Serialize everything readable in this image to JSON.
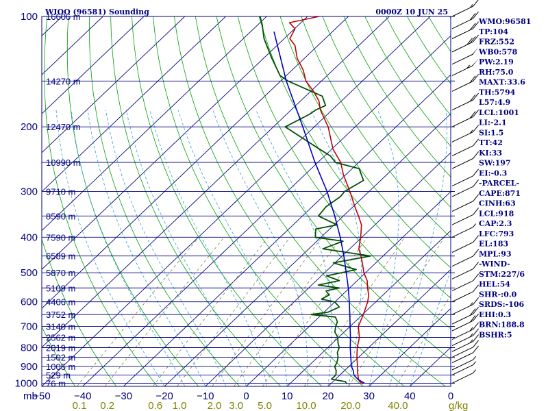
{
  "header": {
    "station": "WIOO (96581) Sounding",
    "time": "0000Z 10 JUN 25"
  },
  "stats": [
    "WMO:96581",
    "TP:104",
    "FRZ:552",
    "WB0:578",
    "PW:2.19",
    "RH:75.0",
    "MAXT:33.6",
    "TH:5794",
    "L57:4.9",
    "LCL:1001",
    "LI:-2.1",
    "SI:1.5",
    "TT:42",
    "KI:33",
    "SW:197",
    "EI:-0.3",
    "-PARCEL-",
    "CAPE:871",
    "CINH:63",
    "LCL:918",
    "CAP:2.3",
    "LFC:793",
    "EL:183",
    "MPL:93",
    "-WIND-",
    "STM:227/6",
    "HEL:54",
    "SHR-:0.0",
    "SRDS:-106",
    "EHI:0.3",
    "BRN:188.8",
    "BSHR:5"
  ],
  "colors": {
    "axes": "#000080",
    "isobar": "#000080",
    "isotherm": "#000080",
    "dry_adiabat": "#00a000",
    "moist_adiabat": "#4aa8e0",
    "mixing_ratio": "#808040",
    "temperature": "#c00000",
    "dewpoint": "#005000",
    "parcel": "#0000c0",
    "wind_barb": "#000000"
  },
  "chart_data": {
    "type": "line",
    "title": "WIOO (96581) Sounding",
    "subtitle": "0000Z 10 JUN 25",
    "diagram": "skew-T log-P",
    "y_axis_label": "mb",
    "x_axis_units": "g/kg",
    "pressure_ticks": [
      100,
      200,
      300,
      400,
      500,
      600,
      700,
      800,
      900,
      1000
    ],
    "temperature_ticks": [
      -50,
      -40,
      -30,
      -20,
      -10,
      0,
      10,
      20,
      30,
      40,
      0
    ],
    "mixing_ratio_ticks": [
      "0.1",
      "0.2",
      "0.6",
      "1.0",
      "2.0",
      "3.0",
      "5.0",
      "10.0",
      "20.0",
      "40.0"
    ],
    "mixing_ratio_values": [
      0.1,
      0.2,
      0.6,
      1.0,
      2.0,
      3.0,
      5.0,
      10.0,
      20.0,
      40.0
    ],
    "height_labels": [
      {
        "p": 100,
        "label": "16606 m"
      },
      {
        "p": 150,
        "label": "14270 m"
      },
      {
        "p": 200,
        "label": "12470 m"
      },
      {
        "p": 250,
        "label": "10990 m"
      },
      {
        "p": 300,
        "label": "9710 m"
      },
      {
        "p": 350,
        "label": "8590 m"
      },
      {
        "p": 400,
        "label": "7590 m"
      },
      {
        "p": 450,
        "label": "6589 m"
      },
      {
        "p": 500,
        "label": "5870 m"
      },
      {
        "p": 550,
        "label": "5109 m"
      },
      {
        "p": 600,
        "label": "4406 m"
      },
      {
        "p": 650,
        "label": "3752 m"
      },
      {
        "p": 700,
        "label": "3140 m"
      },
      {
        "p": 750,
        "label": "2562 m"
      },
      {
        "p": 800,
        "label": "2019 m"
      },
      {
        "p": 850,
        "label": "1502 m"
      },
      {
        "p": 900,
        "label": "1005 m"
      },
      {
        "p": 950,
        "label": "529 m"
      },
      {
        "p": 1000,
        "label": "76 m"
      }
    ],
    "ylim": [
      1020,
      100
    ],
    "xlim": [
      -50,
      50
    ],
    "series": [
      {
        "key": "temperature",
        "points": [
          [
            1005,
            28
          ],
          [
            990,
            26.5
          ],
          [
            975,
            25.6
          ],
          [
            950,
            24.4
          ],
          [
            925,
            23.2
          ],
          [
            900,
            22.1
          ],
          [
            850,
            19.6
          ],
          [
            800,
            17.2
          ],
          [
            750,
            15.1
          ],
          [
            700,
            12.0
          ],
          [
            680,
            11.3
          ],
          [
            650,
            10.2
          ],
          [
            600,
            8.0
          ],
          [
            575,
            6.5
          ],
          [
            550,
            4.4
          ],
          [
            525,
            2.4
          ],
          [
            500,
            -0.4
          ],
          [
            470,
            -3.3
          ],
          [
            450,
            -5.4
          ],
          [
            430,
            -7.8
          ],
          [
            400,
            -10.3
          ],
          [
            370,
            -13.3
          ],
          [
            350,
            -16.3
          ],
          [
            330,
            -19.6
          ],
          [
            300,
            -24.7
          ],
          [
            270,
            -30.6
          ],
          [
            250,
            -34.4
          ],
          [
            230,
            -39.7
          ],
          [
            200,
            -46.6
          ],
          [
            180,
            -52.8
          ],
          [
            170,
            -55.5
          ],
          [
            160,
            -59.3
          ],
          [
            150,
            -63.8
          ],
          [
            140,
            -67.3
          ],
          [
            130,
            -71.8
          ],
          [
            120,
            -75.6
          ],
          [
            115,
            -78.6
          ],
          [
            108,
            -79.9
          ],
          [
            104,
            -82.8
          ],
          [
            102,
            -80.0
          ],
          [
            100,
            -77.2
          ]
        ]
      },
      {
        "key": "dewpoint",
        "points": [
          [
            1005,
            24
          ],
          [
            990,
            23
          ],
          [
            975,
            19
          ],
          [
            950,
            19.0
          ],
          [
            925,
            18.0
          ],
          [
            900,
            16.5
          ],
          [
            880,
            16.1
          ],
          [
            850,
            15.0
          ],
          [
            825,
            13.6
          ],
          [
            800,
            12.8
          ],
          [
            775,
            11.2
          ],
          [
            750,
            9.8
          ],
          [
            725,
            7.7
          ],
          [
            700,
            6.5
          ],
          [
            680,
            5.7
          ],
          [
            660,
            4.0
          ],
          [
            650,
            -2.6
          ],
          [
            640,
            1.0
          ],
          [
            620,
            2.4
          ],
          [
            600,
            -0.1
          ],
          [
            590,
            -4.0
          ],
          [
            575,
            -3.2
          ],
          [
            560,
            -5.0
          ],
          [
            550,
            -2.5
          ],
          [
            540,
            -8.4
          ],
          [
            525,
            -4.4
          ],
          [
            510,
            -8.7
          ],
          [
            490,
            -3.1
          ],
          [
            470,
            -10.4
          ],
          [
            450,
            -3.1
          ],
          [
            430,
            -16.6
          ],
          [
            410,
            -13.6
          ],
          [
            400,
            -21.4
          ],
          [
            380,
            -23.4
          ],
          [
            370,
            -19.3
          ],
          [
            350,
            -26.1
          ],
          [
            330,
            -26.6
          ],
          [
            310,
            -25.7
          ],
          [
            300,
            -26.0
          ],
          [
            280,
            -24.2
          ],
          [
            260,
            -28.3
          ],
          [
            250,
            -35.7
          ],
          [
            240,
            -38.6
          ],
          [
            230,
            -43.0
          ],
          [
            200,
            -57.1
          ],
          [
            185,
            -54.4
          ],
          [
            180,
            -54.0
          ],
          [
            175,
            -52.7
          ],
          [
            165,
            -55.9
          ],
          [
            150,
            -68.2
          ],
          [
            145,
            -71.5
          ],
          [
            130,
            -78.0
          ],
          [
            115,
            -84.9
          ],
          [
            105,
            -89.1
          ],
          [
            100,
            -91.6
          ]
        ]
      },
      {
        "key": "parcel",
        "points": [
          [
            1000,
            28.1
          ],
          [
            975,
            25.4
          ],
          [
            950,
            23.4
          ],
          [
            925,
            22.2
          ],
          [
            900,
            20.6
          ],
          [
            850,
            18.1
          ],
          [
            800,
            15.5
          ],
          [
            750,
            12.9
          ],
          [
            700,
            10.0
          ],
          [
            650,
            6.9
          ],
          [
            600,
            3.5
          ],
          [
            550,
            -0.3
          ],
          [
            500,
            -4.7
          ],
          [
            450,
            -9.6
          ],
          [
            400,
            -15.3
          ],
          [
            350,
            -22.1
          ],
          [
            300,
            -30.3
          ],
          [
            250,
            -40.7
          ],
          [
            200,
            -52.8
          ],
          [
            150,
            -68.6
          ],
          [
            110,
            -84.3
          ]
        ]
      }
    ],
    "wind_profile": [
      {
        "p": 1000,
        "spd": 5
      },
      {
        "p": 950,
        "spd": 5
      },
      {
        "p": 920,
        "spd": 5
      },
      {
        "p": 880,
        "spd": 10
      },
      {
        "p": 850,
        "spd": 10
      },
      {
        "p": 820,
        "spd": 15
      },
      {
        "p": 790,
        "spd": 15
      },
      {
        "p": 760,
        "spd": 15
      },
      {
        "p": 720,
        "spd": 20
      },
      {
        "p": 690,
        "spd": 20
      },
      {
        "p": 650,
        "spd": 15
      },
      {
        "p": 600,
        "spd": 10
      },
      {
        "p": 560,
        "spd": 10
      },
      {
        "p": 520,
        "spd": 10
      },
      {
        "p": 480,
        "spd": 10
      },
      {
        "p": 440,
        "spd": 10
      },
      {
        "p": 400,
        "spd": 5
      },
      {
        "p": 370,
        "spd": 10
      },
      {
        "p": 340,
        "spd": 10
      },
      {
        "p": 310,
        "spd": 10
      },
      {
        "p": 290,
        "spd": 10
      },
      {
        "p": 260,
        "spd": 10
      },
      {
        "p": 240,
        "spd": 10
      },
      {
        "p": 220,
        "spd": 15
      },
      {
        "p": 200,
        "spd": 20
      },
      {
        "p": 180,
        "spd": 20
      },
      {
        "p": 160,
        "spd": 20
      },
      {
        "p": 145,
        "spd": 55
      },
      {
        "p": 135,
        "spd": 50
      },
      {
        "p": 125,
        "spd": 30
      },
      {
        "p": 115,
        "spd": 20
      },
      {
        "p": 108,
        "spd": 20
      },
      {
        "p": 100,
        "spd": 15
      }
    ]
  }
}
